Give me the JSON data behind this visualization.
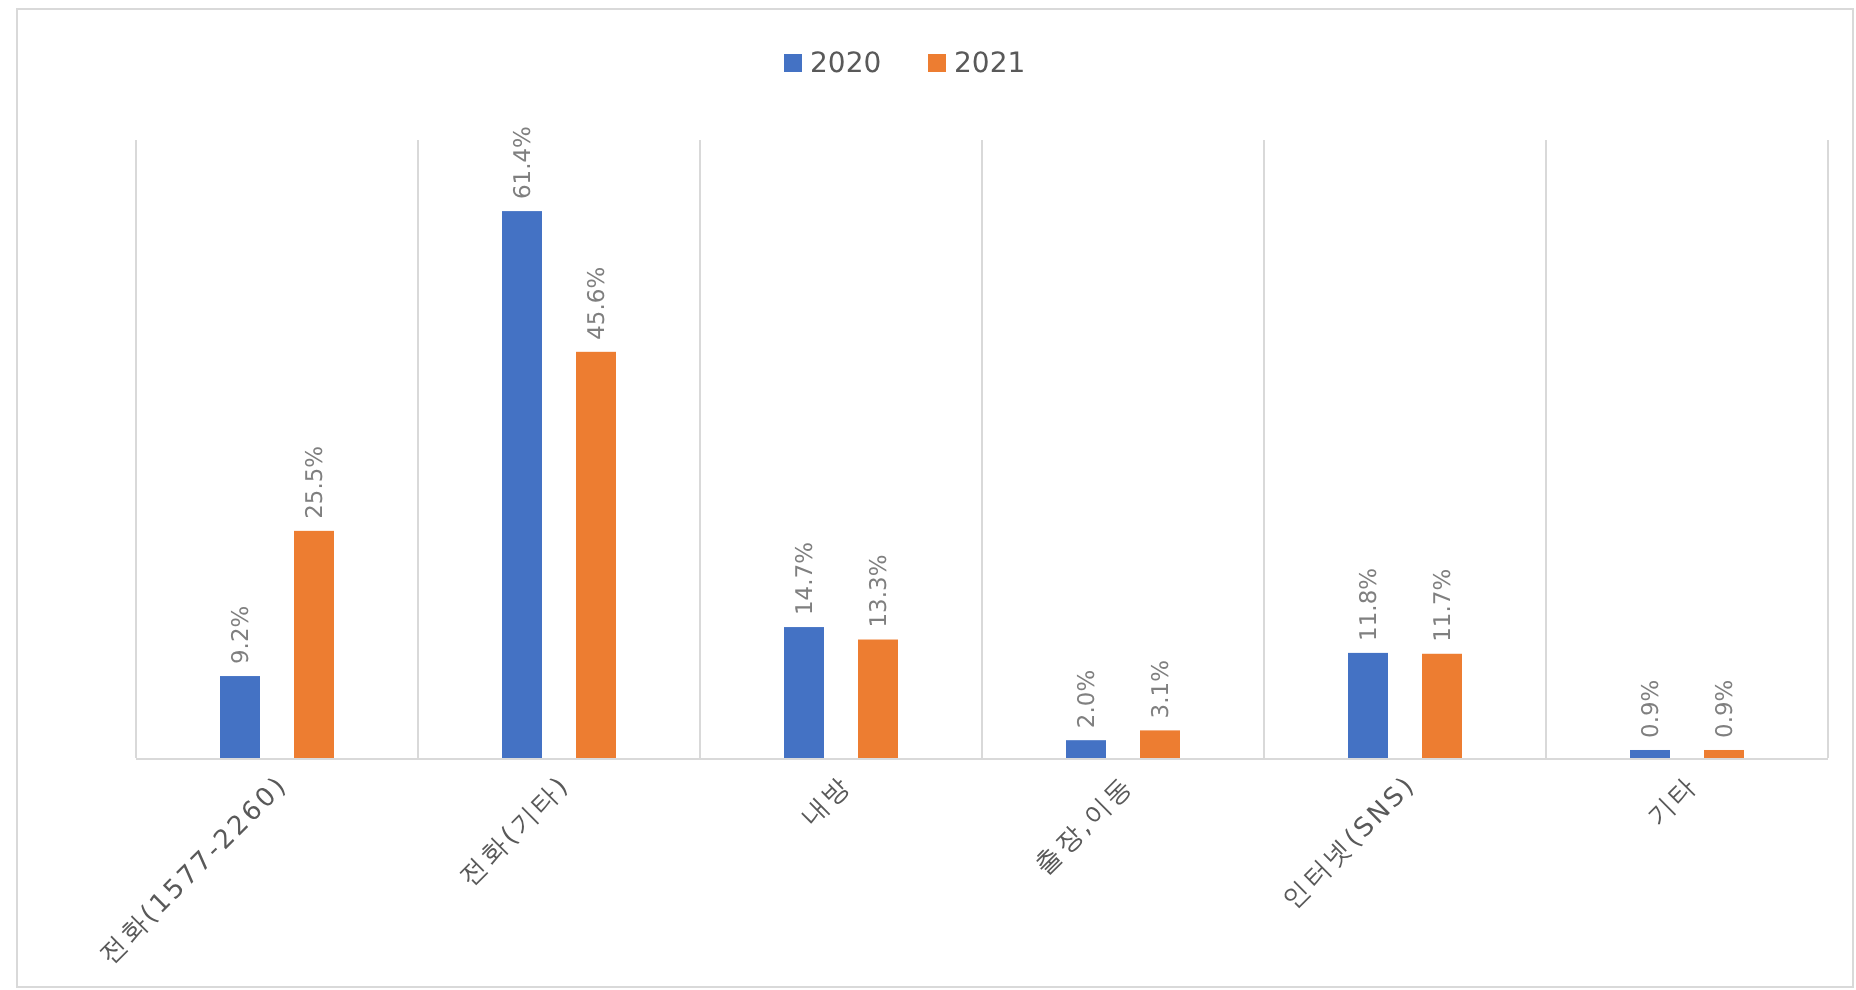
{
  "chart_data": {
    "type": "bar",
    "categories": [
      "전화(1577-2260)",
      "전화(기타)",
      "내방",
      "출장,이동",
      "인터넷(SNS)",
      "기타"
    ],
    "series": [
      {
        "name": "2020",
        "color": "#4472c4",
        "values": [
          9.2,
          61.4,
          14.7,
          2.0,
          11.8,
          0.9
        ],
        "value_labels": [
          "9.2%",
          "61.4%",
          "14.7%",
          "2.0%",
          "11.8%",
          "0.9%"
        ]
      },
      {
        "name": "2021",
        "color": "#ed7d31",
        "values": [
          25.5,
          45.6,
          13.3,
          3.1,
          11.7,
          0.9
        ],
        "value_labels": [
          "25.5%",
          "45.6%",
          "13.3%",
          "3.1%",
          "11.7%",
          "0.9%"
        ]
      }
    ],
    "legend": "top",
    "grid": "x"
  }
}
